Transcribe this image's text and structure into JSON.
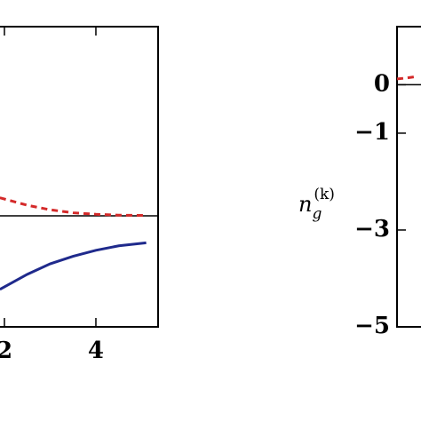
{
  "chart_data": [
    {
      "type": "line",
      "xlim": [
        0,
        5.36
      ],
      "xticks": [
        2,
        4
      ],
      "ylim": [
        -0.74,
        1.26
      ],
      "zero_line": true,
      "series": [
        {
          "color": "#d42a2a",
          "dash": true,
          "x": [
            1.9,
            2.5,
            3,
            3.5,
            4,
            4.5,
            5.1
          ],
          "values": [
            0.12,
            0.07,
            0.04,
            0.02,
            0.01,
            0.004,
            0.002
          ]
        },
        {
          "color": "#1f2a8c",
          "dash": false,
          "x": [
            1.9,
            2.5,
            3,
            3.5,
            4,
            4.5,
            5.1
          ],
          "values": [
            -0.49,
            -0.39,
            -0.32,
            -0.27,
            -0.23,
            -0.2,
            -0.18
          ]
        }
      ]
    },
    {
      "type": "line",
      "ylabel": {
        "base": "n",
        "sub": "g",
        "sup": "(k)"
      },
      "xlim": [
        0,
        5
      ],
      "ylim": [
        -5,
        1.2
      ],
      "yticks": [
        0,
        {
          "value": -1,
          "label": "−1"
        },
        {
          "value": -3,
          "label": "−3"
        },
        {
          "value": -5,
          "label": "−5"
        }
      ],
      "zero_line": true,
      "series": [
        {
          "color": "#d42a2a",
          "dash": true,
          "x": [
            0,
            0.2,
            0.4
          ],
          "values": [
            0.12,
            0.14,
            0.17
          ]
        }
      ]
    }
  ]
}
